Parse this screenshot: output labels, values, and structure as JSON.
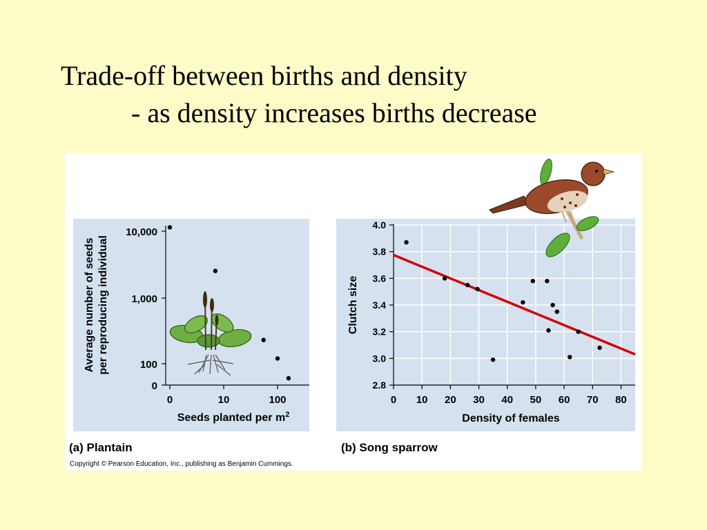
{
  "slide": {
    "title": "Trade-off between births and density",
    "subtitle": "- as density increases births decrease"
  },
  "colors": {
    "background": "#fdfbc8",
    "plot_bg": "#d5e1ee",
    "regression_line": "#d40000"
  },
  "figure": {
    "copyright": "Copyright © Pearson Education, Inc., publishing as Benjamin Cummings."
  },
  "chart_data": [
    {
      "type": "scatter",
      "panel_label": "(a) Plantain",
      "xlabel": "Seeds planted per m",
      "xlabel_sup": "2",
      "ylabel": [
        "Average number of seeds",
        "per reproducing individual"
      ],
      "xscale": "log",
      "yscale": "log",
      "xticks": [
        "0",
        "10",
        "100"
      ],
      "yticks": [
        "0",
        "100",
        "1,000",
        "10,000"
      ],
      "grid": false,
      "points": [
        {
          "x": 1,
          "y": 12000
        },
        {
          "x": 7,
          "y": 2600
        },
        {
          "x": 55,
          "y": 230
        },
        {
          "x": 100,
          "y": 120
        },
        {
          "x": 160,
          "y": 60
        }
      ]
    },
    {
      "type": "scatter",
      "panel_label": "(b) Song sparrow",
      "xlabel": "Density of females",
      "ylabel": "Clutch size",
      "xlim": [
        0,
        85
      ],
      "ylim": [
        2.8,
        4.0
      ],
      "xticks": [
        0,
        10,
        20,
        30,
        40,
        50,
        60,
        70,
        80
      ],
      "yticks": [
        "2.8",
        "3.0",
        "3.2",
        "3.4",
        "3.6",
        "3.8",
        "4.0"
      ],
      "grid": true,
      "regression": {
        "x1": 0,
        "y1": 3.775,
        "x2": 85,
        "y2": 3.03
      },
      "points": [
        {
          "x": 4.5,
          "y": 3.87
        },
        {
          "x": 18,
          "y": 3.6
        },
        {
          "x": 26,
          "y": 3.55
        },
        {
          "x": 29.5,
          "y": 3.52
        },
        {
          "x": 35,
          "y": 2.99
        },
        {
          "x": 45.5,
          "y": 3.42
        },
        {
          "x": 49,
          "y": 3.58
        },
        {
          "x": 54,
          "y": 3.58
        },
        {
          "x": 54.5,
          "y": 3.21
        },
        {
          "x": 56,
          "y": 3.4
        },
        {
          "x": 57.5,
          "y": 3.35
        },
        {
          "x": 62,
          "y": 3.01
        },
        {
          "x": 65,
          "y": 3.2
        },
        {
          "x": 72.5,
          "y": 3.08
        }
      ]
    }
  ]
}
